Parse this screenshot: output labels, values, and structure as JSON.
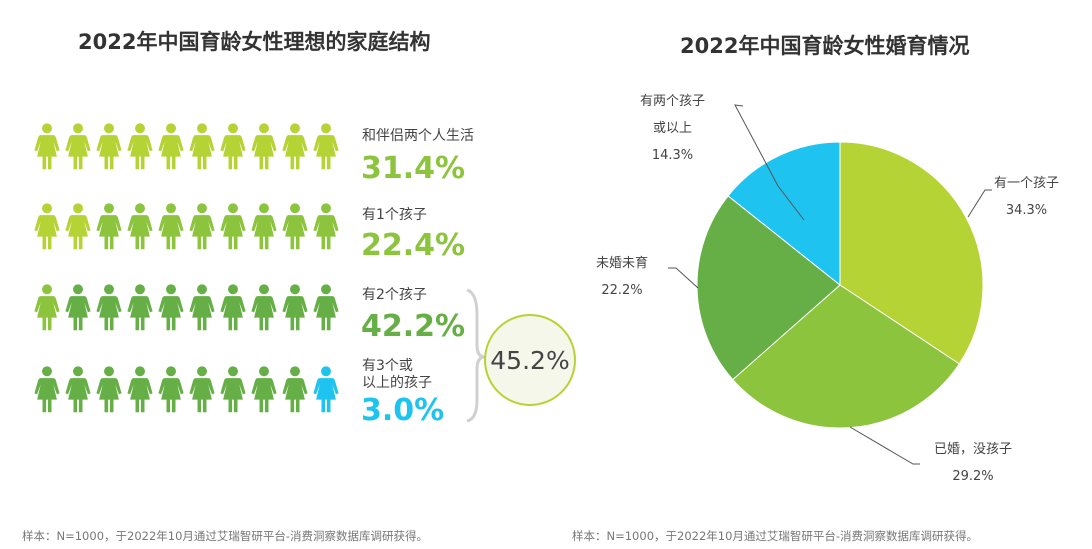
{
  "left": {
    "title": "2022年中国育龄女性理想的家庭结构",
    "colors": {
      "lime": "#b5d334",
      "mid": "#8cc43e",
      "dark": "#66af46",
      "blue": "#1ec4ef"
    },
    "rows": [
      {
        "label": "和伴侣两个人生活",
        "value": "31.4%",
        "value_color": "#8cc43e",
        "icons": [
          "lime",
          "lime",
          "lime",
          "lime",
          "lime",
          "lime",
          "lime",
          "lime",
          "lime",
          "lime"
        ]
      },
      {
        "label": "有1个孩子",
        "value": "22.4%",
        "value_color": "#8cc43e",
        "icons": [
          "lime",
          "lime",
          "mid",
          "mid",
          "mid",
          "mid",
          "mid",
          "mid",
          "mid",
          "mid"
        ]
      },
      {
        "label": "有2个孩子",
        "value": "42.2%",
        "value_color": "#66af46",
        "icons": [
          "mid",
          "dark",
          "dark",
          "dark",
          "dark",
          "dark",
          "dark",
          "dark",
          "dark",
          "dark"
        ]
      },
      {
        "label": "有3个或\n以上的孩子",
        "value": "3.0%",
        "value_color": "#1ec4ef",
        "icons": [
          "dark",
          "dark",
          "dark",
          "dark",
          "dark",
          "dark",
          "dark",
          "dark",
          "dark",
          "blue"
        ]
      }
    ],
    "combined": "45.2%",
    "note": "样本：N=1000，于2022年10月通过艾瑞智研平台-消费洞察数据库调研获得。"
  },
  "right": {
    "title": "2022年中国育龄女性婚育情况",
    "note": "样本：N=1000，于2022年10月通过艾瑞智研平台-消费洞察数据库调研获得。"
  },
  "chart_data": {
    "type": "pie",
    "title": "2022年中国育龄女性婚育情况",
    "slices": [
      {
        "label": "有一个孩子",
        "value": 34.3,
        "text": "34.3%",
        "color": "#b5d334"
      },
      {
        "label": "已婚，没孩子",
        "value": 29.2,
        "text": "29.2%",
        "color": "#8cc43e"
      },
      {
        "label": "未婚未育",
        "value": 22.2,
        "text": "22.2%",
        "color": "#66af46"
      },
      {
        "label": "有两个孩子或以上",
        "label_lines": [
          "有两个孩子",
          "或以上"
        ],
        "value": 14.3,
        "text": "14.3%",
        "color": "#1ec4ef"
      }
    ]
  }
}
